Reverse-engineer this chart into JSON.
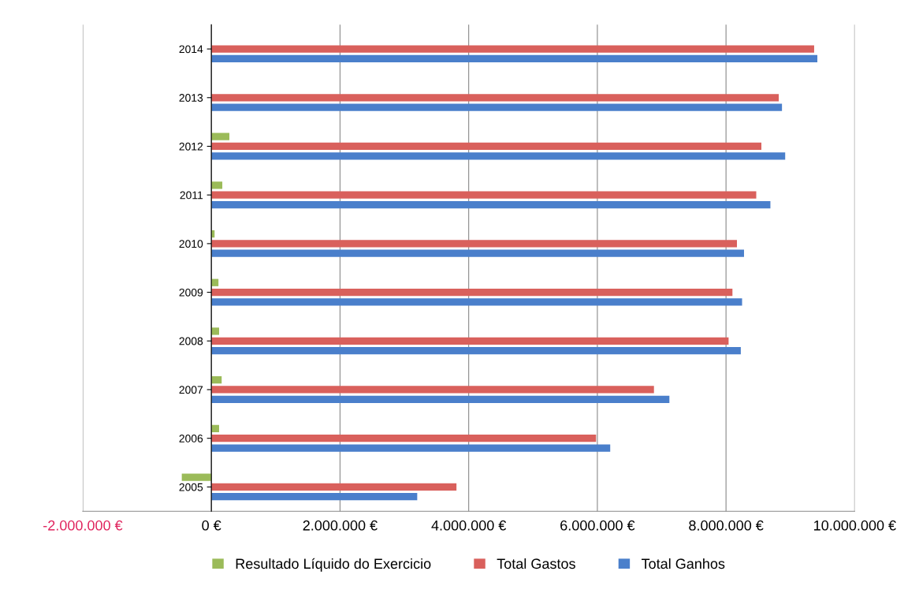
{
  "chart_data": {
    "type": "bar",
    "orientation": "horizontal",
    "categories": [
      "2014",
      "2013",
      "2012",
      "2011",
      "2010",
      "2009",
      "2008",
      "2007",
      "2006",
      "2005"
    ],
    "series": [
      {
        "name": "Resultado Líquido do Exercicio",
        "color": "#9bbb59",
        "values": [
          null,
          null,
          280000,
          170000,
          50000,
          110000,
          120000,
          160000,
          120000,
          -460000
        ]
      },
      {
        "name": "Total Gastos",
        "color": "#d9605c",
        "values": [
          9370000,
          8820000,
          8550000,
          8470000,
          8170000,
          8100000,
          8040000,
          6880000,
          5980000,
          3810000
        ]
      },
      {
        "name": "Total Ganhos",
        "color": "#4a7fcb",
        "values": [
          9420000,
          8870000,
          8920000,
          8690000,
          8280000,
          8250000,
          8230000,
          7120000,
          6200000,
          3200000
        ]
      }
    ],
    "xlim": [
      -2000000,
      10000000
    ],
    "xticks": [
      {
        "value": -2000000,
        "label": "-2.000.000 €"
      },
      {
        "value": 0,
        "label": "0 €"
      },
      {
        "value": 2000000,
        "label": "2.000.000 €"
      },
      {
        "value": 4000000,
        "label": "4.000.000 €"
      },
      {
        "value": 6000000,
        "label": "6.000.000 €"
      },
      {
        "value": 8000000,
        "label": "8.000.000 €"
      },
      {
        "value": 10000000,
        "label": "10.000.000 €"
      }
    ],
    "grid": "x",
    "legend": "bottom"
  }
}
